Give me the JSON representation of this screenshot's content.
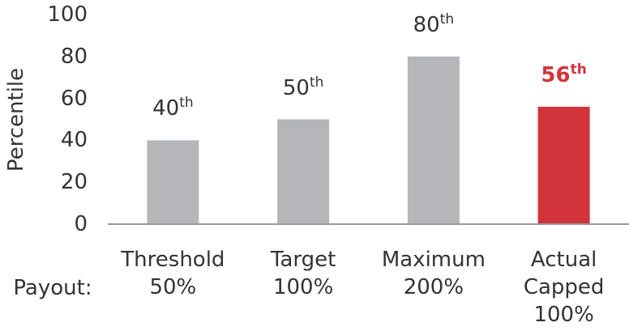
{
  "chart_data": {
    "type": "bar",
    "y_label": "Percentile",
    "categories": [
      "Threshold",
      "Target",
      "Maximum",
      "Actual Capped"
    ],
    "payout_label": "Payout:",
    "payouts": [
      "50%",
      "100%",
      "200%",
      "100%"
    ],
    "values": [
      40,
      50,
      80,
      56
    ],
    "value_labels": [
      "40th",
      "50th",
      "80th",
      "56th"
    ],
    "colors": [
      "#b5b6ba",
      "#b5b6ba",
      "#b5b6ba",
      "#d0343a"
    ],
    "highlight": 3,
    "ylim": [
      0,
      100
    ],
    "yticks": [
      0,
      20,
      40,
      60,
      80,
      100
    ],
    "grid": false
  }
}
